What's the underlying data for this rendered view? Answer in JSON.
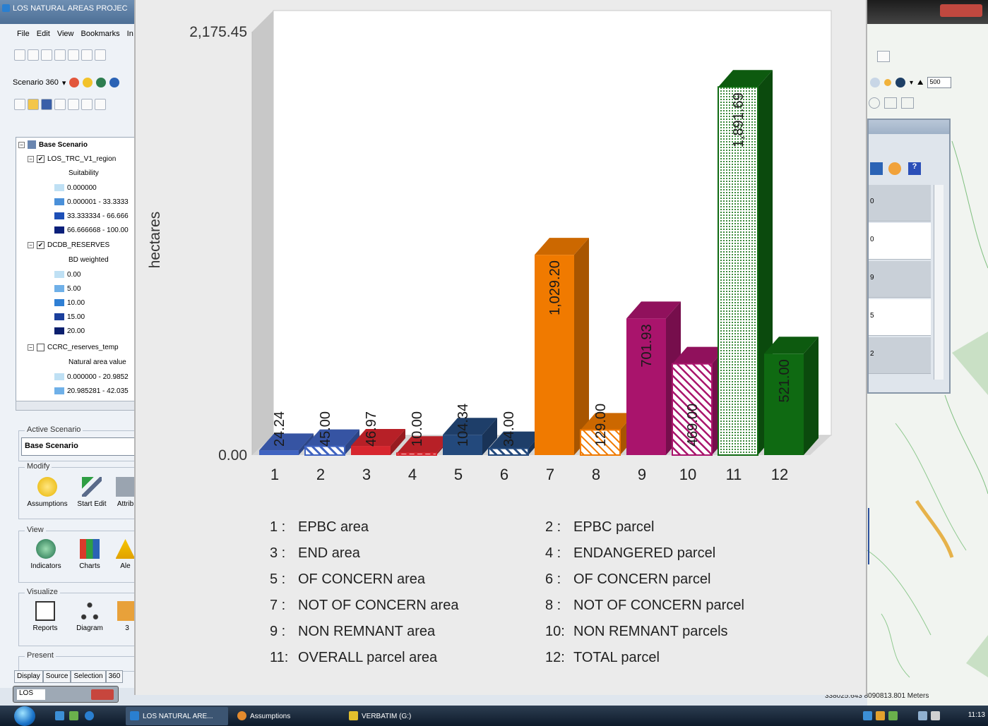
{
  "app": {
    "title": "LOS NATURAL AREAS PROJEC",
    "menu": [
      "File",
      "Edit",
      "View",
      "Bookmarks",
      "In"
    ],
    "scenario_dropdown": "Scenario 360"
  },
  "toc": {
    "root": "Base Scenario",
    "layer1": {
      "name": "LOS_TRC_V1_region",
      "field": "Suitability",
      "classes": [
        "0.000000",
        "0.000001 - 33.3333",
        "33.333334 - 66.666",
        "66.666668 - 100.00"
      ]
    },
    "layer2": {
      "name": "DCDB_RESERVES",
      "field": "BD weighted",
      "classes": [
        "0.00",
        "5.00",
        "10.00",
        "15.00",
        "20.00"
      ]
    },
    "layer3": {
      "name": "CCRC_reserves_temp",
      "field": "Natural area value",
      "classes": [
        "0.000000 - 20.9852",
        "20.985281 - 42.035"
      ]
    }
  },
  "panel": {
    "active_scenario_label": "Active Scenario",
    "active_scenario_value": "Base Scenario",
    "modify_label": "Modify",
    "modify_tools": [
      "Assumptions",
      "Start Edit",
      "Attrib"
    ],
    "view_label": "View",
    "view_tools": [
      "Indicators",
      "Charts",
      "Ale"
    ],
    "visualize_label": "Visualize",
    "visualize_tools": [
      "Reports",
      "Diagram",
      "3"
    ],
    "present_label": "Present",
    "tabs": [
      "Display",
      "Source",
      "Selection",
      "360"
    ]
  },
  "mini_window_label": "LOS",
  "map": {
    "zoom_value": "500",
    "attr_rows": [
      "0",
      "0",
      "9",
      "5",
      "2"
    ],
    "coords": "338025.643  8090813.801 Meters"
  },
  "taskbar": {
    "items": [
      "LOS NATURAL ARE...",
      "Assumptions",
      "VERBATIM (G:)"
    ],
    "clock": "11:13"
  },
  "chart_data": {
    "type": "bar",
    "title": "",
    "ylabel": "hectares",
    "xlabel": "",
    "ylim": [
      0,
      2175.45
    ],
    "y_tick_labels": [
      "0.00",
      "2,175.45"
    ],
    "categories": [
      "1",
      "2",
      "3",
      "4",
      "5",
      "6",
      "7",
      "8",
      "9",
      "10",
      "11",
      "12"
    ],
    "values": [
      24.24,
      45.0,
      46.97,
      10.0,
      104.34,
      34.0,
      1029.2,
      129.0,
      701.93,
      469.0,
      1891.69,
      521.0
    ],
    "value_labels": [
      "24.24",
      "45.00",
      "46.97",
      "10.00",
      "104.34",
      "34.00",
      "1,029.20",
      "129.00",
      "701.93",
      "469.00",
      "1,891.69",
      "521.00"
    ],
    "colors": [
      "#3f63c0",
      "#3f63c0",
      "#d7262e",
      "#d7262e",
      "#23497c",
      "#23497c",
      "#f07a00",
      "#f07a00",
      "#a9146c",
      "#a9146c",
      "#0f6a12",
      "#0f6a12"
    ],
    "patterns": [
      "solid",
      "hatch",
      "solid",
      "hatch",
      "solid",
      "hatch",
      "solid",
      "hatch",
      "solid",
      "hatch",
      "dots",
      "solid"
    ],
    "legend": [
      {
        "key": "1 :",
        "label": "EPBC area"
      },
      {
        "key": "2 :",
        "label": "EPBC parcel"
      },
      {
        "key": "3 :",
        "label": "END area"
      },
      {
        "key": "4 :",
        "label": "ENDANGERED parcel"
      },
      {
        "key": "5 :",
        "label": "OF CONCERN area"
      },
      {
        "key": "6 :",
        "label": "OF CONCERN parcel"
      },
      {
        "key": "7 :",
        "label": "NOT OF CONCERN  area"
      },
      {
        "key": "8 :",
        "label": "NOT OF CONCERN parcel"
      },
      {
        "key": "9 :",
        "label": "NON REMNANT area"
      },
      {
        "key": "10:",
        "label": "NON REMNANT parcels"
      },
      {
        "key": "11:",
        "label": "OVERALL parcel area"
      },
      {
        "key": "12:",
        "label": "TOTAL parcel"
      }
    ]
  }
}
